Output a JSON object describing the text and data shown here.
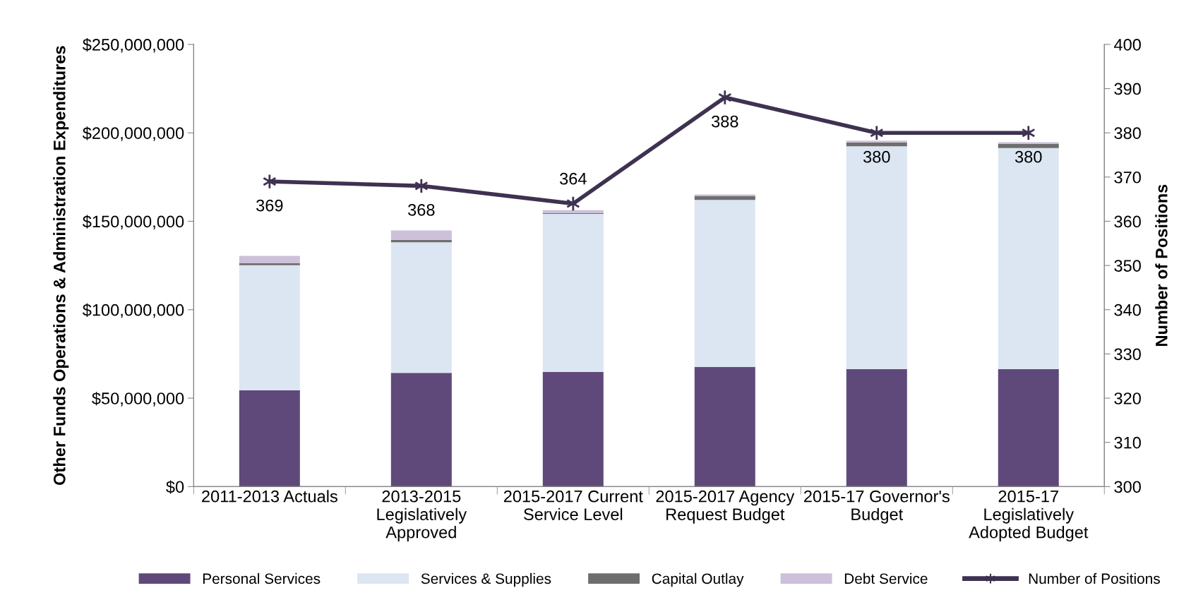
{
  "chart_data": {
    "type": "bar",
    "stacked": true,
    "categories": [
      "2011-2013 Actuals",
      "2013-2015 Legislatively Approved",
      "2015-2017 Current Service Level",
      "2015-2017 Agency Request Budget",
      "2015-17 Governor's Budget",
      "2015-17 Legislatively Adopted Budget"
    ],
    "series": [
      {
        "name": "Personal Services",
        "color": "#5f497a",
        "values": [
          54400000,
          64300000,
          64800000,
          67700000,
          66400000,
          66400000
        ]
      },
      {
        "name": "Services & Supplies",
        "color": "#dce6f2",
        "values": [
          70700000,
          73800000,
          89400000,
          94400000,
          126000000,
          125000000
        ]
      },
      {
        "name": "Capital Outlay",
        "color": "#6e6e6e",
        "values": [
          1100000,
          1400000,
          500000,
          2300000,
          2200000,
          2300000
        ]
      },
      {
        "name": "Debt Service",
        "color": "#ccc0da",
        "values": [
          4200000,
          5300000,
          1600000,
          800000,
          1000000,
          1000000
        ]
      },
      {
        "name": "Number of Positions",
        "type": "line",
        "axis": "y2",
        "color": "#3f3151",
        "marker": "cross",
        "values": [
          369,
          368,
          364,
          388,
          380,
          380
        ],
        "value_labels": [
          "369",
          "368",
          "364",
          "388",
          "380",
          "380"
        ]
      }
    ],
    "ylabel": "Other Funds Operations & Administration Expenditures",
    "y2label": "Number of Positions",
    "ylim": [
      0,
      250000000
    ],
    "yticks": [
      {
        "value": 0,
        "label": "$0"
      },
      {
        "value": 50000000,
        "label": "$50,000,000"
      },
      {
        "value": 100000000,
        "label": "$100,000,000"
      },
      {
        "value": 150000000,
        "label": "$150,000,000"
      },
      {
        "value": 200000000,
        "label": "$200,000,000"
      },
      {
        "value": 250000000,
        "label": "$250,000,000"
      }
    ],
    "y2lim": [
      300,
      400
    ],
    "y2ticks": [
      300,
      310,
      320,
      330,
      340,
      350,
      360,
      370,
      380,
      390,
      400
    ],
    "grid": false,
    "legend": "bottom"
  }
}
